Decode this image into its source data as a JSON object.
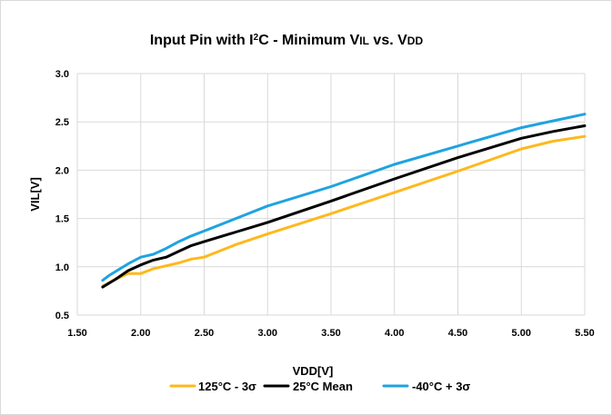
{
  "chart_data": {
    "type": "line",
    "title": {
      "prefix": "Input Pin with I",
      "superscript": "2",
      "suffix": "C - Minimum V",
      "sub1": "IL",
      "middle": " vs. V",
      "sub2": "DD"
    },
    "xlabel": "VDD[V]",
    "ylabel": "VIL[V]",
    "xlim": [
      1.5,
      5.5
    ],
    "ylim": [
      0.5,
      3.0
    ],
    "x_ticks": [
      "1.50",
      "2.00",
      "2.50",
      "3.00",
      "3.50",
      "4.00",
      "4.50",
      "5.00",
      "5.50"
    ],
    "y_ticks": [
      "0.5",
      "1.0",
      "1.5",
      "2.0",
      "2.5",
      "3.0"
    ],
    "grid": true,
    "legend_position": "bottom",
    "series": [
      {
        "name": "125°C - 3σ",
        "color": "#FFB81C",
        "x": [
          1.7,
          1.8,
          1.9,
          2.0,
          2.1,
          2.2,
          2.3,
          2.4,
          2.5,
          2.75,
          3.0,
          3.5,
          4.0,
          4.5,
          5.0,
          5.25,
          5.5
        ],
        "y": [
          0.8,
          0.87,
          0.93,
          0.93,
          0.98,
          1.01,
          1.04,
          1.08,
          1.1,
          1.23,
          1.34,
          1.55,
          1.77,
          1.99,
          2.22,
          2.3,
          2.35
        ]
      },
      {
        "name": "25°C Mean",
        "color": "#000000",
        "x": [
          1.7,
          1.8,
          1.9,
          2.0,
          2.1,
          2.2,
          2.3,
          2.4,
          2.5,
          2.75,
          3.0,
          3.5,
          4.0,
          4.5,
          5.0,
          5.25,
          5.5
        ],
        "y": [
          0.79,
          0.87,
          0.96,
          1.02,
          1.07,
          1.1,
          1.16,
          1.22,
          1.26,
          1.36,
          1.46,
          1.68,
          1.91,
          2.13,
          2.33,
          2.4,
          2.46
        ]
      },
      {
        "name": "-40°C + 3σ",
        "color": "#1FA3E0",
        "x": [
          1.7,
          1.75,
          1.8,
          1.9,
          2.0,
          2.1,
          2.2,
          2.3,
          2.4,
          2.5,
          2.75,
          3.0,
          3.5,
          4.0,
          4.5,
          5.0,
          5.25,
          5.5
        ],
        "y": [
          0.86,
          0.91,
          0.95,
          1.03,
          1.1,
          1.13,
          1.19,
          1.26,
          1.32,
          1.37,
          1.5,
          1.63,
          1.83,
          2.06,
          2.25,
          2.44,
          2.51,
          2.58
        ]
      }
    ]
  }
}
